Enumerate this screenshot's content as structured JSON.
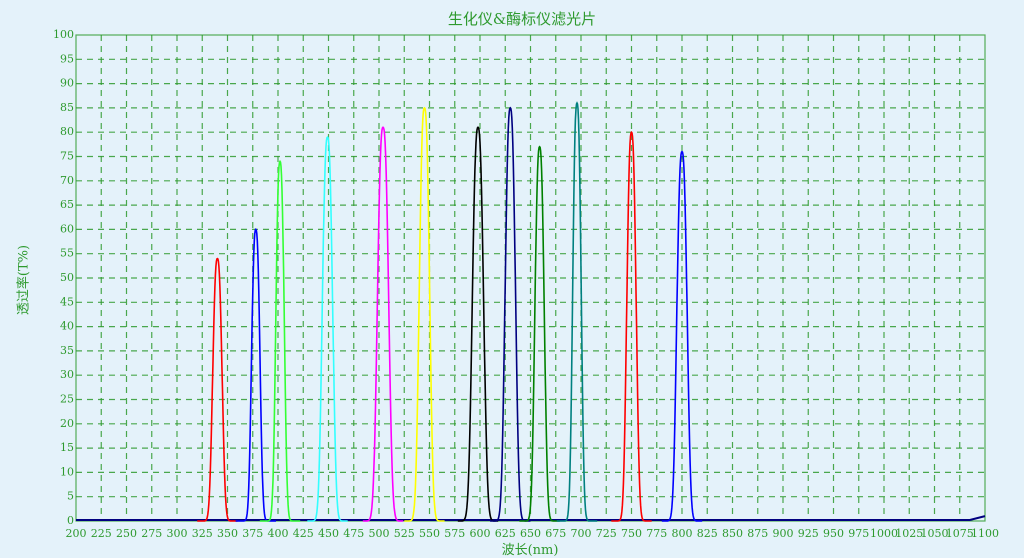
{
  "chart_data": {
    "type": "line",
    "title": "生化仪&酶标仪滤光片",
    "xlabel": "波长(nm)",
    "ylabel": "透过率(T%)",
    "xlim": [
      200,
      1100
    ],
    "ylim": [
      0,
      100
    ],
    "xticks": [
      200,
      225,
      250,
      275,
      300,
      325,
      350,
      375,
      400,
      425,
      450,
      475,
      500,
      525,
      550,
      575,
      600,
      625,
      650,
      675,
      700,
      725,
      750,
      775,
      800,
      825,
      850,
      875,
      900,
      925,
      950,
      975,
      1000,
      1025,
      1050,
      1075,
      1100
    ],
    "yticks": [
      0,
      5,
      10,
      15,
      20,
      25,
      30,
      35,
      40,
      45,
      50,
      55,
      60,
      65,
      70,
      75,
      80,
      85,
      90,
      95,
      100
    ],
    "grid": true,
    "grid_color": "#2e9a2e",
    "series": [
      {
        "color": "#ff0000",
        "center": 340,
        "peak": 54,
        "fwhm": 10
      },
      {
        "color": "#0000ff",
        "center": 378,
        "peak": 60,
        "fwhm": 9
      },
      {
        "color": "#33ff33",
        "center": 402,
        "peak": 74,
        "fwhm": 9
      },
      {
        "color": "#33ffff",
        "center": 449,
        "peak": 79,
        "fwhm": 11
      },
      {
        "color": "#ff00ff",
        "center": 504,
        "peak": 81,
        "fwhm": 12
      },
      {
        "color": "#ffff00",
        "center": 545,
        "peak": 85,
        "fwhm": 11
      },
      {
        "color": "#000000",
        "center": 598,
        "peak": 81,
        "fwhm": 12
      },
      {
        "color": "#000080",
        "center": 630,
        "peak": 85,
        "fwhm": 11
      },
      {
        "color": "#008000",
        "center": 659,
        "peak": 77,
        "fwhm": 10
      },
      {
        "color": "#008080",
        "center": 696,
        "peak": 86,
        "fwhm": 9
      },
      {
        "color": "#ff0000",
        "center": 750,
        "peak": 80,
        "fwhm": 10
      },
      {
        "color": "#0000ff",
        "center": 800,
        "peak": 76,
        "fwhm": 11
      }
    ],
    "baseline_color": "#000080"
  }
}
